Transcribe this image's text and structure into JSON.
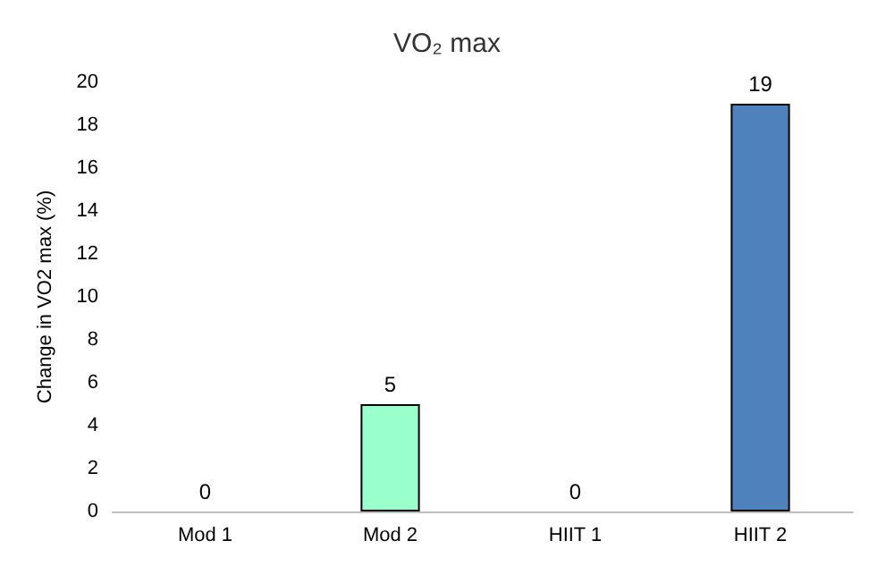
{
  "chart_data": {
    "type": "bar",
    "title": "VO₂ max",
    "ylabel": "Change in VO2 max (%)",
    "categories": [
      "Mod 1",
      "Mod 2",
      "HIIT 1",
      "HIIT 2"
    ],
    "values": [
      0,
      5,
      0,
      19
    ],
    "colors": [
      null,
      "#99ffcc",
      null,
      "#4f81bd"
    ],
    "ylim": [
      0,
      20
    ],
    "yticks": [
      0,
      2,
      4,
      6,
      8,
      10,
      12,
      14,
      16,
      18,
      20
    ],
    "grid": false,
    "data_labels": true
  }
}
